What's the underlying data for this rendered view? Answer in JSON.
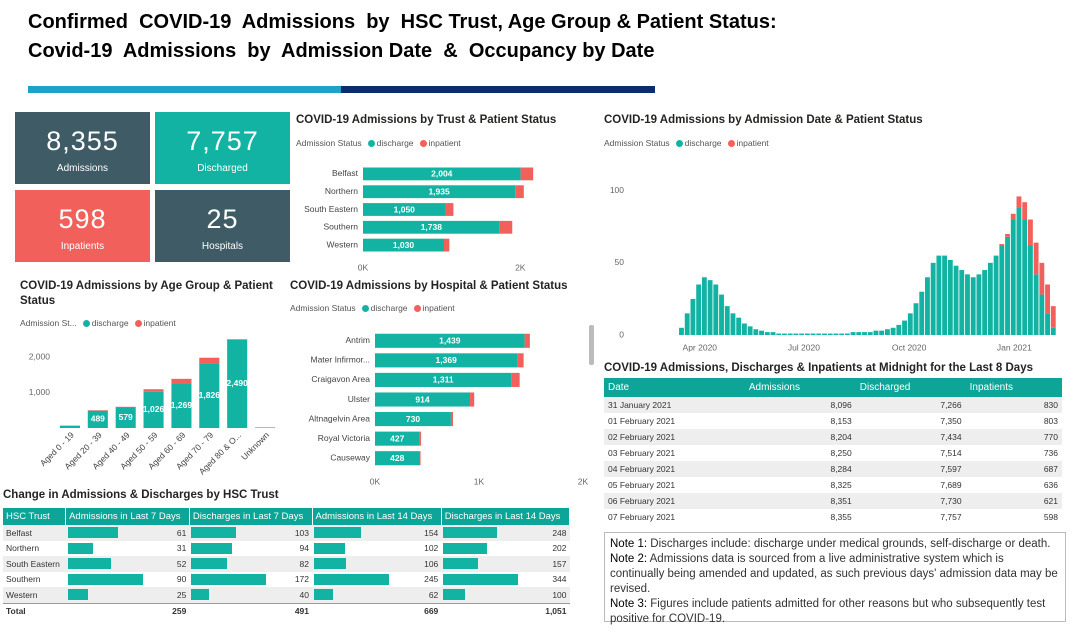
{
  "header": {
    "title_lines": [
      "Confirmed  COVID-19  Admissions  by  HSC Trust, Age Group & Patient Status:",
      "Covid-19  Admissions  by  Admission Date  &  Occupancy by Date"
    ]
  },
  "kpis": [
    {
      "value": "8,355",
      "label": "Admissions"
    },
    {
      "value": "7,757",
      "label": "Discharged"
    },
    {
      "value": "598",
      "label": "Inpatients"
    },
    {
      "value": "25",
      "label": "Hospitals"
    }
  ],
  "chart_data": [
    {
      "type": "hbar",
      "title": "COVID-19 Admissions by Trust & Patient Status",
      "legend_title": "Admission Status",
      "categories": [
        "Belfast",
        "Northern",
        "South Eastern",
        "Southern",
        "Western"
      ],
      "series": [
        {
          "name": "discharge",
          "color": "#13b3a4",
          "values": [
            2004,
            1935,
            1050,
            1738,
            1030
          ],
          "value_labels": [
            "2,004",
            "1,935",
            "1,050",
            "1,738",
            "1,030"
          ]
        },
        {
          "name": "inpatient",
          "color": "#f2605c",
          "values": [
            160,
            110,
            100,
            160,
            68
          ]
        }
      ],
      "xlim": [
        0,
        2200
      ],
      "xticks": [
        {
          "value": 0,
          "label": "0K"
        },
        {
          "value": 2000,
          "label": "2K"
        }
      ]
    },
    {
      "type": "bar",
      "title": "COVID-19 Admissions by Admission Date & Patient Status",
      "legend_title": "Admission Status",
      "x": [
        15,
        20,
        25,
        30,
        35,
        40,
        45,
        50,
        55,
        60,
        65,
        70,
        75,
        80,
        85,
        90,
        95,
        100,
        105,
        110,
        115,
        120,
        125,
        130,
        135,
        140,
        145,
        150,
        155,
        160,
        165,
        170,
        175,
        180,
        185,
        190,
        195,
        200,
        205,
        210,
        215,
        220,
        225,
        230,
        235,
        240,
        245,
        250,
        255,
        260,
        265,
        270,
        275,
        280,
        285,
        290,
        295,
        300,
        305,
        310,
        315,
        320,
        325,
        330,
        335,
        340
      ],
      "series": [
        {
          "name": "discharge",
          "color": "#13b3a4",
          "values": [
            5,
            15,
            25,
            35,
            40,
            38,
            35,
            28,
            20,
            15,
            12,
            8,
            6,
            4,
            3,
            2,
            2,
            1,
            1,
            1,
            1,
            1,
            1,
            1,
            1,
            1,
            1,
            1,
            1,
            1,
            2,
            2,
            2,
            2,
            3,
            3,
            4,
            5,
            7,
            10,
            15,
            22,
            30,
            40,
            50,
            55,
            55,
            52,
            48,
            45,
            42,
            40,
            42,
            45,
            50,
            55,
            62,
            68,
            80,
            88,
            80,
            62,
            42,
            28,
            15,
            5
          ]
        },
        {
          "name": "inpatient",
          "color": "#f2605c",
          "values": [
            0,
            0,
            0,
            0,
            0,
            0,
            0,
            0,
            0,
            0,
            0,
            0,
            0,
            0,
            0,
            0,
            0,
            0,
            0,
            0,
            0,
            0,
            0,
            0,
            0,
            0,
            0,
            0,
            0,
            0,
            0,
            0,
            0,
            0,
            0,
            0,
            0,
            0,
            0,
            0,
            0,
            0,
            0,
            0,
            0,
            0,
            0,
            0,
            0,
            0,
            0,
            0,
            0,
            0,
            0,
            0,
            1,
            2,
            4,
            8,
            12,
            18,
            22,
            22,
            20,
            15
          ]
        }
      ],
      "xlim": [
        -30,
        345
      ],
      "xticks": [
        {
          "value": 31,
          "label": "Apr 2020"
        },
        {
          "value": 122,
          "label": "Jul 2020"
        },
        {
          "value": 214,
          "label": "Oct 2020"
        },
        {
          "value": 306,
          "label": "Jan 2021"
        }
      ],
      "ylim": [
        0,
        115
      ],
      "yticks": [
        0,
        50,
        100
      ]
    },
    {
      "type": "bar",
      "title": "COVID-19 Admissions by Age Group & Patient Status",
      "legend_title": "Admission St...",
      "categories": [
        "Aged 0 - 19",
        "Aged 20 - 39",
        "Aged 40 - 49",
        "Aged 50 - 59",
        "Aged 60 - 69",
        "Aged 70 - 79",
        "Aged 80 & O...",
        "Unknown"
      ],
      "series": [
        {
          "name": "discharge",
          "color": "#13b3a4",
          "values": [
            65,
            489,
            579,
            1026,
            1269,
            1826,
            2490,
            13
          ],
          "value_labels": [
            null,
            "489",
            "579",
            "1,026",
            "1,269",
            "1,826",
            "2,490",
            null
          ]
        },
        {
          "name": "inpatient",
          "color": "#f2605c",
          "values": [
            5,
            15,
            20,
            70,
            120,
            160,
            20,
            5
          ]
        }
      ],
      "ylim": [
        0,
        2600
      ],
      "yticks": [
        {
          "value": 1000,
          "label": "1,000"
        },
        {
          "value": 2000,
          "label": "2,000"
        }
      ]
    },
    {
      "type": "hbar",
      "title": "COVID-19 Admissions by Hospital & Patient Status",
      "legend_title": "Admission Status",
      "categories": [
        "Antrim",
        "Mater Infirmor...",
        "Craigavon Area",
        "Ulster",
        "Altnagelvin Area",
        "Royal Victoria",
        "Causeway"
      ],
      "series": [
        {
          "name": "discharge",
          "color": "#13b3a4",
          "values": [
            1439,
            1369,
            1311,
            914,
            730,
            427,
            428
          ],
          "value_labels": [
            "1,439",
            "1,369",
            "1,311",
            "914",
            "730",
            "427",
            "428"
          ]
        },
        {
          "name": "inpatient",
          "color": "#f2605c",
          "values": [
            50,
            60,
            80,
            40,
            20,
            15,
            10
          ]
        }
      ],
      "xlim": [
        0,
        2000
      ],
      "xticks": [
        {
          "value": 0,
          "label": "0K"
        },
        {
          "value": 1000,
          "label": "1K"
        },
        {
          "value": 2000,
          "label": "2K"
        }
      ]
    }
  ],
  "midnight_table": {
    "title": "COVID-19 Admissions, Discharges & Inpatients at Midnight for the Last 8 Days",
    "columns": [
      "Date",
      "Admissions",
      "Discharged",
      "Inpatients"
    ],
    "rows": [
      [
        "31 January 2021",
        "8,096",
        "7,266",
        "830"
      ],
      [
        "01 February 2021",
        "8,153",
        "7,350",
        "803"
      ],
      [
        "02 February 2021",
        "8,204",
        "7,434",
        "770"
      ],
      [
        "03 February 2021",
        "8,250",
        "7,514",
        "736"
      ],
      [
        "04 February 2021",
        "8,284",
        "7,597",
        "687"
      ],
      [
        "05 February 2021",
        "8,325",
        "7,689",
        "636"
      ],
      [
        "06 February 2021",
        "8,351",
        "7,730",
        "621"
      ],
      [
        "07 February 2021",
        "8,355",
        "7,757",
        "598"
      ]
    ]
  },
  "change_table": {
    "title": "Change in Admissions & Discharges by HSC Trust",
    "columns": [
      "HSC Trust",
      "Admissions in Last 7 Days",
      "Discharges in Last 7 Days",
      "Admissions in Last 14 Days",
      "Discharges in Last 14 Days"
    ],
    "rows": [
      [
        "Belfast",
        61,
        103,
        154,
        248
      ],
      [
        "Northern",
        31,
        94,
        102,
        202
      ],
      [
        "South Eastern",
        52,
        82,
        106,
        157
      ],
      [
        "Southern",
        90,
        172,
        245,
        344
      ],
      [
        "Western",
        25,
        40,
        62,
        100
      ]
    ],
    "total": [
      "Total",
      "259",
      "491",
      "669",
      "1,051"
    ]
  },
  "notes": [
    {
      "label": "Note 1:",
      "text": "Discharges include: discharge under medical grounds, self-discharge or death."
    },
    {
      "label": "Note 2:",
      "text": "Admissions data is sourced from a live administrative system which is continually being amended and updated, as such previous days' admission data may be revised."
    },
    {
      "label": "Note 3:",
      "text": "Figures include patients admitted for other reasons but who subsequently test positive for COVID-19."
    }
  ]
}
